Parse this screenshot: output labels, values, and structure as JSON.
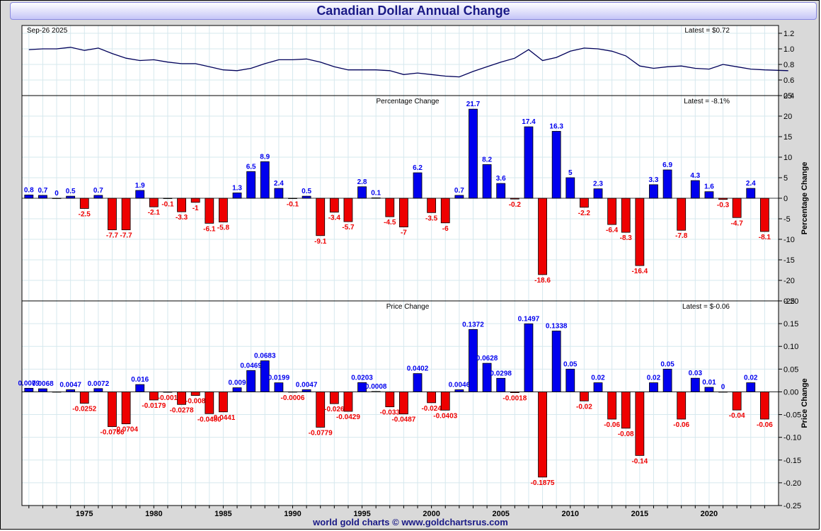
{
  "title": "Canadian Dollar Annual Change",
  "footer": "world gold charts © www.goldchartsrus.com",
  "colors": {
    "positive": "#0000ee",
    "negative": "#ee0000",
    "line": "#00005a",
    "grid": "#d6e8ee",
    "title_text": "#1a1a86"
  },
  "chart_data": [
    {
      "panel": "price",
      "type": "line",
      "date_label": "Sep-26  2025",
      "latest_label": "Latest = $0.72",
      "ylim": [
        0.4,
        1.3
      ],
      "yticks": [
        "1.2",
        "1.0",
        "0.8",
        "0.6",
        "0.4"
      ],
      "x": [
        1971,
        1972,
        1973,
        1974,
        1975,
        1976,
        1977,
        1978,
        1979,
        1980,
        1981,
        1982,
        1983,
        1984,
        1985,
        1986,
        1987,
        1988,
        1989,
        1990,
        1991,
        1992,
        1993,
        1994,
        1995,
        1996,
        1997,
        1998,
        1999,
        2000,
        2001,
        2002,
        2003,
        2004,
        2005,
        2006,
        2007,
        2008,
        2009,
        2010,
        2011,
        2012,
        2013,
        2014,
        2015,
        2016,
        2017,
        2018,
        2019,
        2020,
        2021,
        2022,
        2023,
        2024,
        2025.7
      ],
      "y": [
        0.99,
        1.0,
        1.0,
        1.02,
        0.98,
        1.01,
        0.94,
        0.88,
        0.85,
        0.86,
        0.83,
        0.81,
        0.81,
        0.77,
        0.73,
        0.72,
        0.75,
        0.81,
        0.86,
        0.86,
        0.87,
        0.83,
        0.77,
        0.73,
        0.73,
        0.73,
        0.72,
        0.67,
        0.69,
        0.67,
        0.65,
        0.64,
        0.71,
        0.77,
        0.83,
        0.88,
        0.99,
        0.85,
        0.89,
        0.97,
        1.01,
        1.0,
        0.97,
        0.91,
        0.78,
        0.75,
        0.77,
        0.78,
        0.75,
        0.74,
        0.8,
        0.77,
        0.74,
        0.73,
        0.72
      ]
    },
    {
      "panel": "percentage",
      "type": "bar",
      "title": "Percentage Change",
      "latest_label": "Latest = -8.1%",
      "ylabel": "Percentage Change",
      "ylim": [
        -25,
        25
      ],
      "yticks": [
        "25",
        "20",
        "15",
        "10",
        "5",
        "0",
        "-5",
        "-10",
        "-15",
        "-20",
        "-25"
      ],
      "categories": [
        1971,
        1972,
        1973,
        1974,
        1975,
        1976,
        1977,
        1978,
        1979,
        1980,
        1981,
        1982,
        1983,
        1984,
        1985,
        1986,
        1987,
        1988,
        1989,
        1990,
        1991,
        1992,
        1993,
        1994,
        1995,
        1996,
        1997,
        1998,
        1999,
        2000,
        2001,
        2002,
        2003,
        2004,
        2005,
        2006,
        2007,
        2008,
        2009,
        2010,
        2011,
        2012,
        2013,
        2014,
        2015,
        2016,
        2017,
        2018,
        2019,
        2020,
        2021,
        2022,
        2023,
        2024
      ],
      "values": [
        0.8,
        0.7,
        0,
        0.5,
        -2.5,
        0.7,
        -7.7,
        -7.7,
        1.9,
        -2.1,
        -0.1,
        -3.3,
        -1,
        -6.1,
        -5.8,
        1.3,
        6.5,
        8.9,
        2.4,
        -0.1,
        0.5,
        -9.1,
        -3.4,
        -5.7,
        2.8,
        0.1,
        -4.5,
        -7,
        6.2,
        -3.5,
        -6,
        0.7,
        21.7,
        8.2,
        3.6,
        -0.2,
        17.4,
        -18.6,
        16.3,
        5,
        -2.2,
        2.3,
        -6.4,
        -8.3,
        -16.4,
        3.3,
        6.9,
        -7.8,
        4.3,
        1.6,
        -0.3,
        -4.7,
        2.4,
        -8.1
      ],
      "labels": [
        "0.8",
        "0.7",
        "0",
        "0.5",
        "-2.5",
        "0.7",
        "-7.7",
        "-7.7",
        "1.9",
        "-2.1",
        "-0.1",
        "-3.3",
        "-1",
        "-6.1",
        "-5.8",
        "1.3",
        "6.5",
        "8.9",
        "2.4",
        "-0.1",
        "0.5",
        "-9.1",
        "-3.4",
        "-5.7",
        "2.8",
        "0.1",
        "-4.5",
        "-7",
        "6.2",
        "-3.5",
        "-6",
        "0.7",
        "21.7",
        "8.2",
        "3.6",
        "-0.2",
        "17.4",
        "-18.6",
        "16.3",
        "5",
        "-2.2",
        "2.3",
        "-6.4",
        "-8.3",
        "-16.4",
        "3.3",
        "6.9",
        "-7.8",
        "4.3",
        "1.6",
        "-0.3",
        "-4.7",
        "2.4",
        "-8.1"
      ]
    },
    {
      "panel": "price_change",
      "type": "bar",
      "title": "Price Change",
      "latest_label": "Latest = $-0.06",
      "ylabel": "Price Change",
      "ylim": [
        -0.25,
        0.2
      ],
      "yticks": [
        "0.20",
        "0.15",
        "0.10",
        "0.05",
        "0.00",
        "-0.05",
        "-0.10",
        "-0.15",
        "-0.20",
        "-0.25"
      ],
      "categories": [
        1971,
        1972,
        1973,
        1974,
        1975,
        1976,
        1977,
        1978,
        1979,
        1980,
        1981,
        1982,
        1983,
        1984,
        1985,
        1986,
        1987,
        1988,
        1989,
        1990,
        1991,
        1992,
        1993,
        1994,
        1995,
        1996,
        1997,
        1998,
        1999,
        2000,
        2001,
        2002,
        2003,
        2004,
        2005,
        2006,
        2007,
        2008,
        2009,
        2010,
        2011,
        2012,
        2013,
        2014,
        2015,
        2016,
        2017,
        2018,
        2019,
        2020,
        2021,
        2022,
        2023,
        2024
      ],
      "values": [
        0.0079,
        0.0068,
        0,
        0.0047,
        -0.0252,
        0.0072,
        -0.0766,
        -0.0704,
        0.016,
        -0.0179,
        -0.001,
        -0.0278,
        -0.008,
        -0.048,
        -0.0441,
        0.009,
        0.0469,
        0.0683,
        0.0199,
        -0.0006,
        0.0047,
        -0.0779,
        -0.026,
        -0.0429,
        0.0203,
        0.0008,
        -0.033,
        -0.0487,
        0.0402,
        -0.024,
        -0.0403,
        0.0046,
        0.1372,
        0.0628,
        0.0298,
        -0.0018,
        0.1497,
        -0.1875,
        0.1338,
        0.05,
        -0.02,
        0.02,
        -0.06,
        -0.08,
        -0.14,
        0.02,
        0.05,
        -0.06,
        0.03,
        0.01,
        0,
        -0.04,
        0.02,
        -0.06
      ],
      "labels": [
        "0.0079",
        "0.0068",
        "",
        "0.0047",
        "-0.0252",
        "0.0072",
        "-0.0766",
        "-0.0704",
        "0.016",
        "-0.0179",
        "-0.001",
        "-0.0278",
        "-0.008",
        "-0.0480",
        "-0.0441",
        "0.009",
        "0.0469",
        "0.0683",
        "0.0199",
        "-0.0006",
        "0.0047",
        "-0.0779",
        "-0.026",
        "-0.0429",
        "0.0203",
        "0.0008",
        "-0.033",
        "-0.0487",
        "0.0402",
        "-0.024",
        "-0.0403",
        "0.0046",
        "0.1372",
        "0.0628",
        "0.0298",
        "-0.0018",
        "0.1497",
        "-0.1875",
        "0.1338",
        "0.05",
        "-0.02",
        "0.02",
        "-0.06",
        "-0.08",
        "-0.14",
        "0.02",
        "0.05",
        "-0.06",
        "0.03",
        "0.01",
        "0",
        "-0.04",
        "0.02",
        "-0.06"
      ]
    }
  ],
  "x_axis": {
    "ticks": [
      1975,
      1980,
      1985,
      1990,
      1995,
      2000,
      2005,
      2010,
      2015,
      2020
    ],
    "labels": [
      "1975",
      "1980",
      "1985",
      "1990",
      "1995",
      "2000",
      "2005",
      "2010",
      "2015",
      "2020"
    ]
  }
}
